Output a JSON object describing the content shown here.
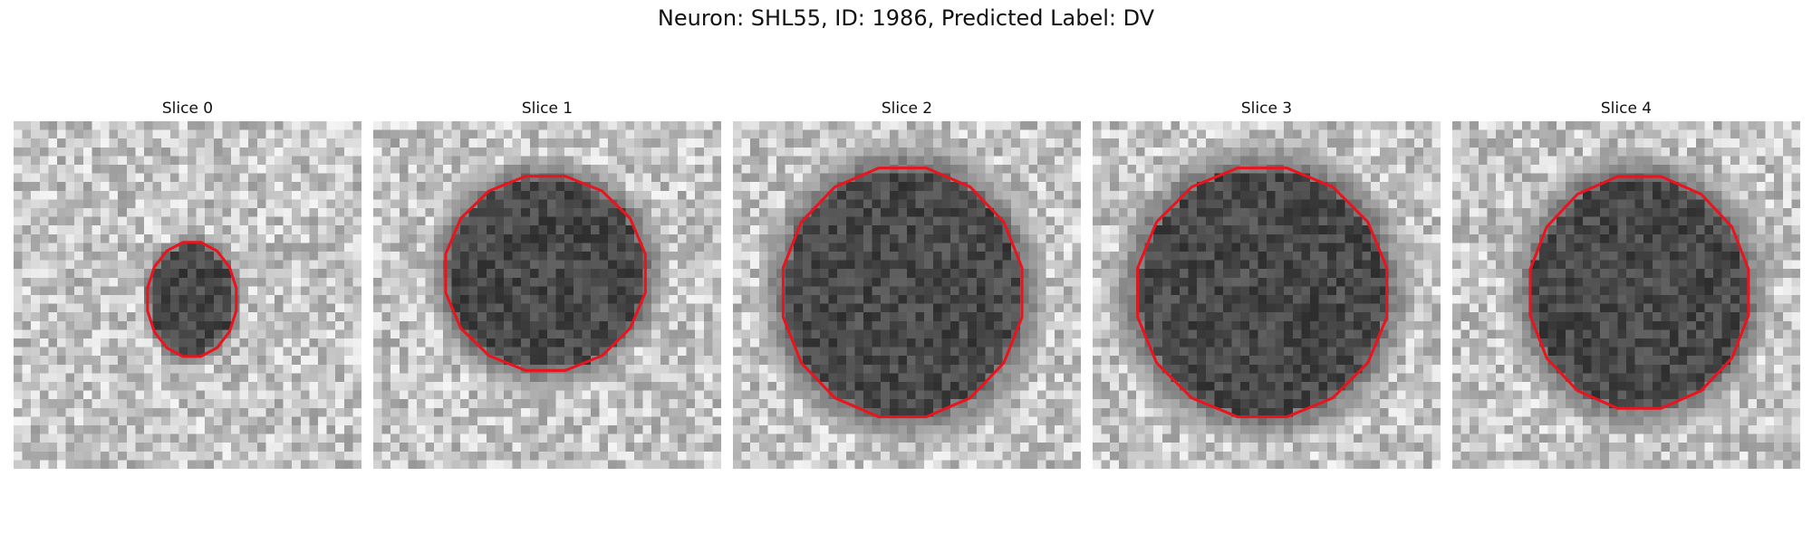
{
  "figure": {
    "title": "Neuron: SHL55, ID: 1986, Predicted Label: DV"
  },
  "panels": [
    {
      "title": "Slice 0",
      "cell": {
        "cx": 20.5,
        "cy": 20.5,
        "rx": 4.8,
        "ry": 6.3
      }
    },
    {
      "title": "Slice 1",
      "cell": {
        "cx": 19.8,
        "cy": 17.5,
        "rx": 11.3,
        "ry": 11.0
      }
    },
    {
      "title": "Slice 2",
      "cell": {
        "cx": 19.5,
        "cy": 19.7,
        "rx": 13.6,
        "ry": 14.2
      }
    },
    {
      "title": "Slice 3",
      "cell": {
        "cx": 19.5,
        "cy": 19.7,
        "rx": 14.2,
        "ry": 14.2
      }
    },
    {
      "title": "Slice 4",
      "cell": {
        "cx": 21.5,
        "cy": 19.7,
        "rx": 12.4,
        "ry": 13.2
      }
    }
  ],
  "colors": {
    "contour": "#e8141e",
    "background_gray": "#c8c8c8",
    "cell_gray": "#3a3a3a"
  }
}
